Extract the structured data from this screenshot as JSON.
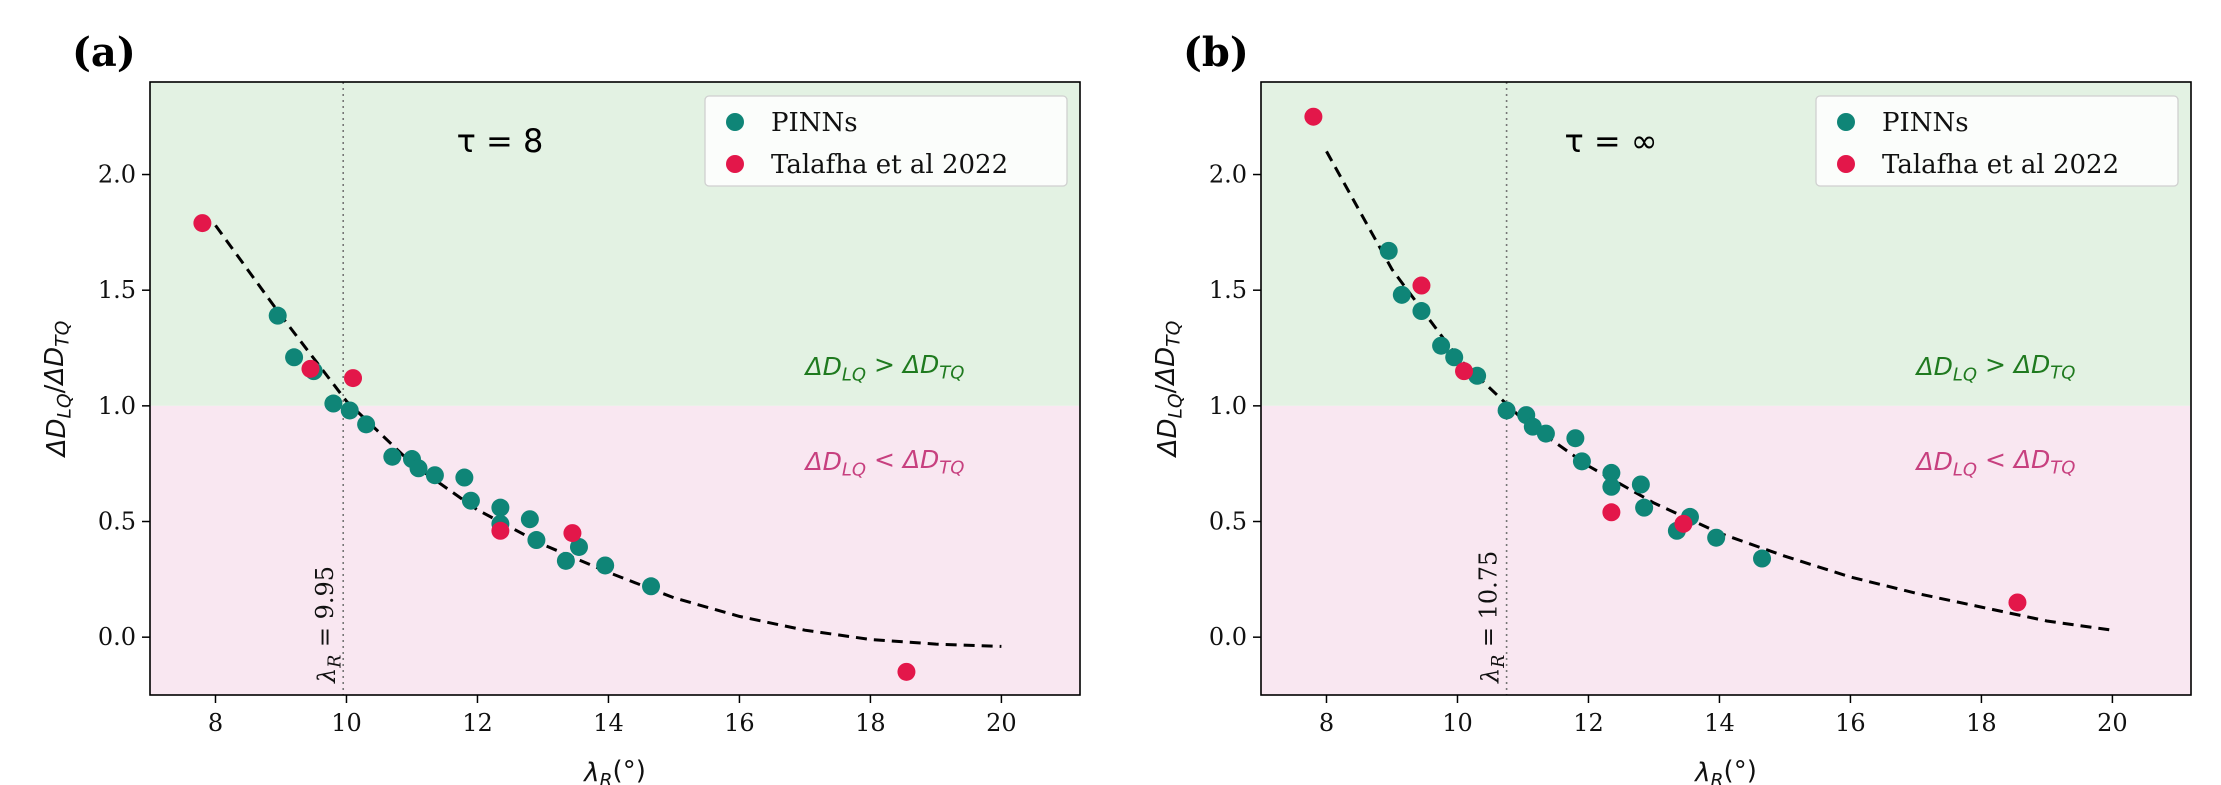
{
  "chart_data": [
    {
      "type": "scatter",
      "panel_label": "(a)",
      "tau_label": "τ = 8",
      "xlabel": "λR(°)",
      "ylabel": "ΔDLQ/ΔDTQ",
      "xlim": [
        7.0,
        21.2
      ],
      "ylim": [
        -0.25,
        2.4
      ],
      "xticks": [
        8,
        10,
        12,
        14,
        16,
        18,
        20
      ],
      "yticks": [
        0.0,
        0.5,
        1.0,
        1.5,
        2.0
      ],
      "xtick_labels": [
        "8",
        "10",
        "12",
        "14",
        "16",
        "18",
        "20"
      ],
      "ytick_labels": [
        "0.0",
        "0.5",
        "1.0",
        "1.5",
        "2.0"
      ],
      "threshold": 9.95,
      "threshold_label": "λR = 9.95",
      "region_upper_label": "ΔDLQ > ΔDTQ",
      "region_lower_label": "ΔDLQ < ΔDTQ",
      "legend": [
        "PINNs",
        "Talafha et al 2022"
      ],
      "series": [
        {
          "name": "PINNs",
          "color": "#0f8577",
          "points": [
            [
              8.95,
              1.39
            ],
            [
              9.2,
              1.21
            ],
            [
              9.5,
              1.15
            ],
            [
              9.8,
              1.01
            ],
            [
              10.05,
              0.98
            ],
            [
              10.3,
              0.92
            ],
            [
              10.7,
              0.78
            ],
            [
              11.0,
              0.77
            ],
            [
              11.1,
              0.73
            ],
            [
              11.35,
              0.7
            ],
            [
              11.8,
              0.69
            ],
            [
              11.9,
              0.59
            ],
            [
              12.35,
              0.56
            ],
            [
              12.35,
              0.49
            ],
            [
              12.8,
              0.51
            ],
            [
              12.9,
              0.42
            ],
            [
              13.35,
              0.33
            ],
            [
              13.55,
              0.39
            ],
            [
              13.95,
              0.31
            ],
            [
              14.65,
              0.22
            ]
          ]
        },
        {
          "name": "Talafha et al 2022",
          "color": "#e3174a",
          "points": [
            [
              7.8,
              1.79
            ],
            [
              9.45,
              1.16
            ],
            [
              10.1,
              1.12
            ],
            [
              12.35,
              0.46
            ],
            [
              13.45,
              0.45
            ],
            [
              18.55,
              -0.15
            ]
          ]
        }
      ],
      "fit_curve": {
        "style": "dashed",
        "color": "#000000",
        "points": [
          [
            8.0,
            1.78
          ],
          [
            9.0,
            1.39
          ],
          [
            10.0,
            1.02
          ],
          [
            11.0,
            0.75
          ],
          [
            12.0,
            0.55
          ],
          [
            13.0,
            0.4
          ],
          [
            14.0,
            0.28
          ],
          [
            15.0,
            0.17
          ],
          [
            16.0,
            0.09
          ],
          [
            17.0,
            0.03
          ],
          [
            18.0,
            -0.01
          ],
          [
            19.0,
            -0.03
          ],
          [
            20.0,
            -0.04
          ]
        ]
      },
      "boundary_y": 1.0,
      "upper_region_color": "#e3f2e3",
      "lower_region_color": "#f9e7f1"
    },
    {
      "type": "scatter",
      "panel_label": "(b)",
      "tau_label": "τ = ∞",
      "xlabel": "λR(°)",
      "ylabel": "ΔDLQ/ΔDTQ",
      "xlim": [
        7.0,
        21.2
      ],
      "ylim": [
        -0.25,
        2.4
      ],
      "xticks": [
        8,
        10,
        12,
        14,
        16,
        18,
        20
      ],
      "yticks": [
        0.0,
        0.5,
        1.0,
        1.5,
        2.0
      ],
      "xtick_labels": [
        "8",
        "10",
        "12",
        "14",
        "16",
        "18",
        "20"
      ],
      "ytick_labels": [
        "0.0",
        "0.5",
        "1.0",
        "1.5",
        "2.0"
      ],
      "threshold": 10.75,
      "threshold_label": "λR = 10.75",
      "region_upper_label": "ΔDLQ > ΔDTQ",
      "region_lower_label": "ΔDLQ < ΔDTQ",
      "legend": [
        "PINNs",
        "Talafha et al 2022"
      ],
      "series": [
        {
          "name": "PINNs",
          "color": "#0f8577",
          "points": [
            [
              8.95,
              1.67
            ],
            [
              9.15,
              1.48
            ],
            [
              9.45,
              1.41
            ],
            [
              9.75,
              1.26
            ],
            [
              9.95,
              1.21
            ],
            [
              10.3,
              1.13
            ],
            [
              10.75,
              0.98
            ],
            [
              11.05,
              0.96
            ],
            [
              11.15,
              0.91
            ],
            [
              11.35,
              0.88
            ],
            [
              11.8,
              0.86
            ],
            [
              11.9,
              0.76
            ],
            [
              12.35,
              0.71
            ],
            [
              12.35,
              0.65
            ],
            [
              12.8,
              0.66
            ],
            [
              12.85,
              0.56
            ],
            [
              13.35,
              0.46
            ],
            [
              13.55,
              0.52
            ],
            [
              13.95,
              0.43
            ],
            [
              14.65,
              0.34
            ]
          ]
        },
        {
          "name": "Talafha et al 2022",
          "color": "#e3174a",
          "points": [
            [
              7.8,
              2.25
            ],
            [
              9.45,
              1.52
            ],
            [
              10.1,
              1.15
            ],
            [
              12.35,
              0.54
            ],
            [
              13.45,
              0.49
            ],
            [
              18.55,
              0.15
            ]
          ]
        }
      ],
      "fit_curve": {
        "style": "dashed",
        "color": "#000000",
        "points": [
          [
            8.0,
            2.1
          ],
          [
            9.0,
            1.59
          ],
          [
            10.0,
            1.21
          ],
          [
            11.0,
            0.94
          ],
          [
            12.0,
            0.74
          ],
          [
            13.0,
            0.58
          ],
          [
            14.0,
            0.45
          ],
          [
            15.0,
            0.35
          ],
          [
            16.0,
            0.26
          ],
          [
            17.0,
            0.19
          ],
          [
            18.0,
            0.13
          ],
          [
            19.0,
            0.07
          ],
          [
            20.0,
            0.03
          ]
        ]
      },
      "boundary_y": 1.0,
      "upper_region_color": "#e3f2e3",
      "lower_region_color": "#f9e7f1"
    }
  ]
}
